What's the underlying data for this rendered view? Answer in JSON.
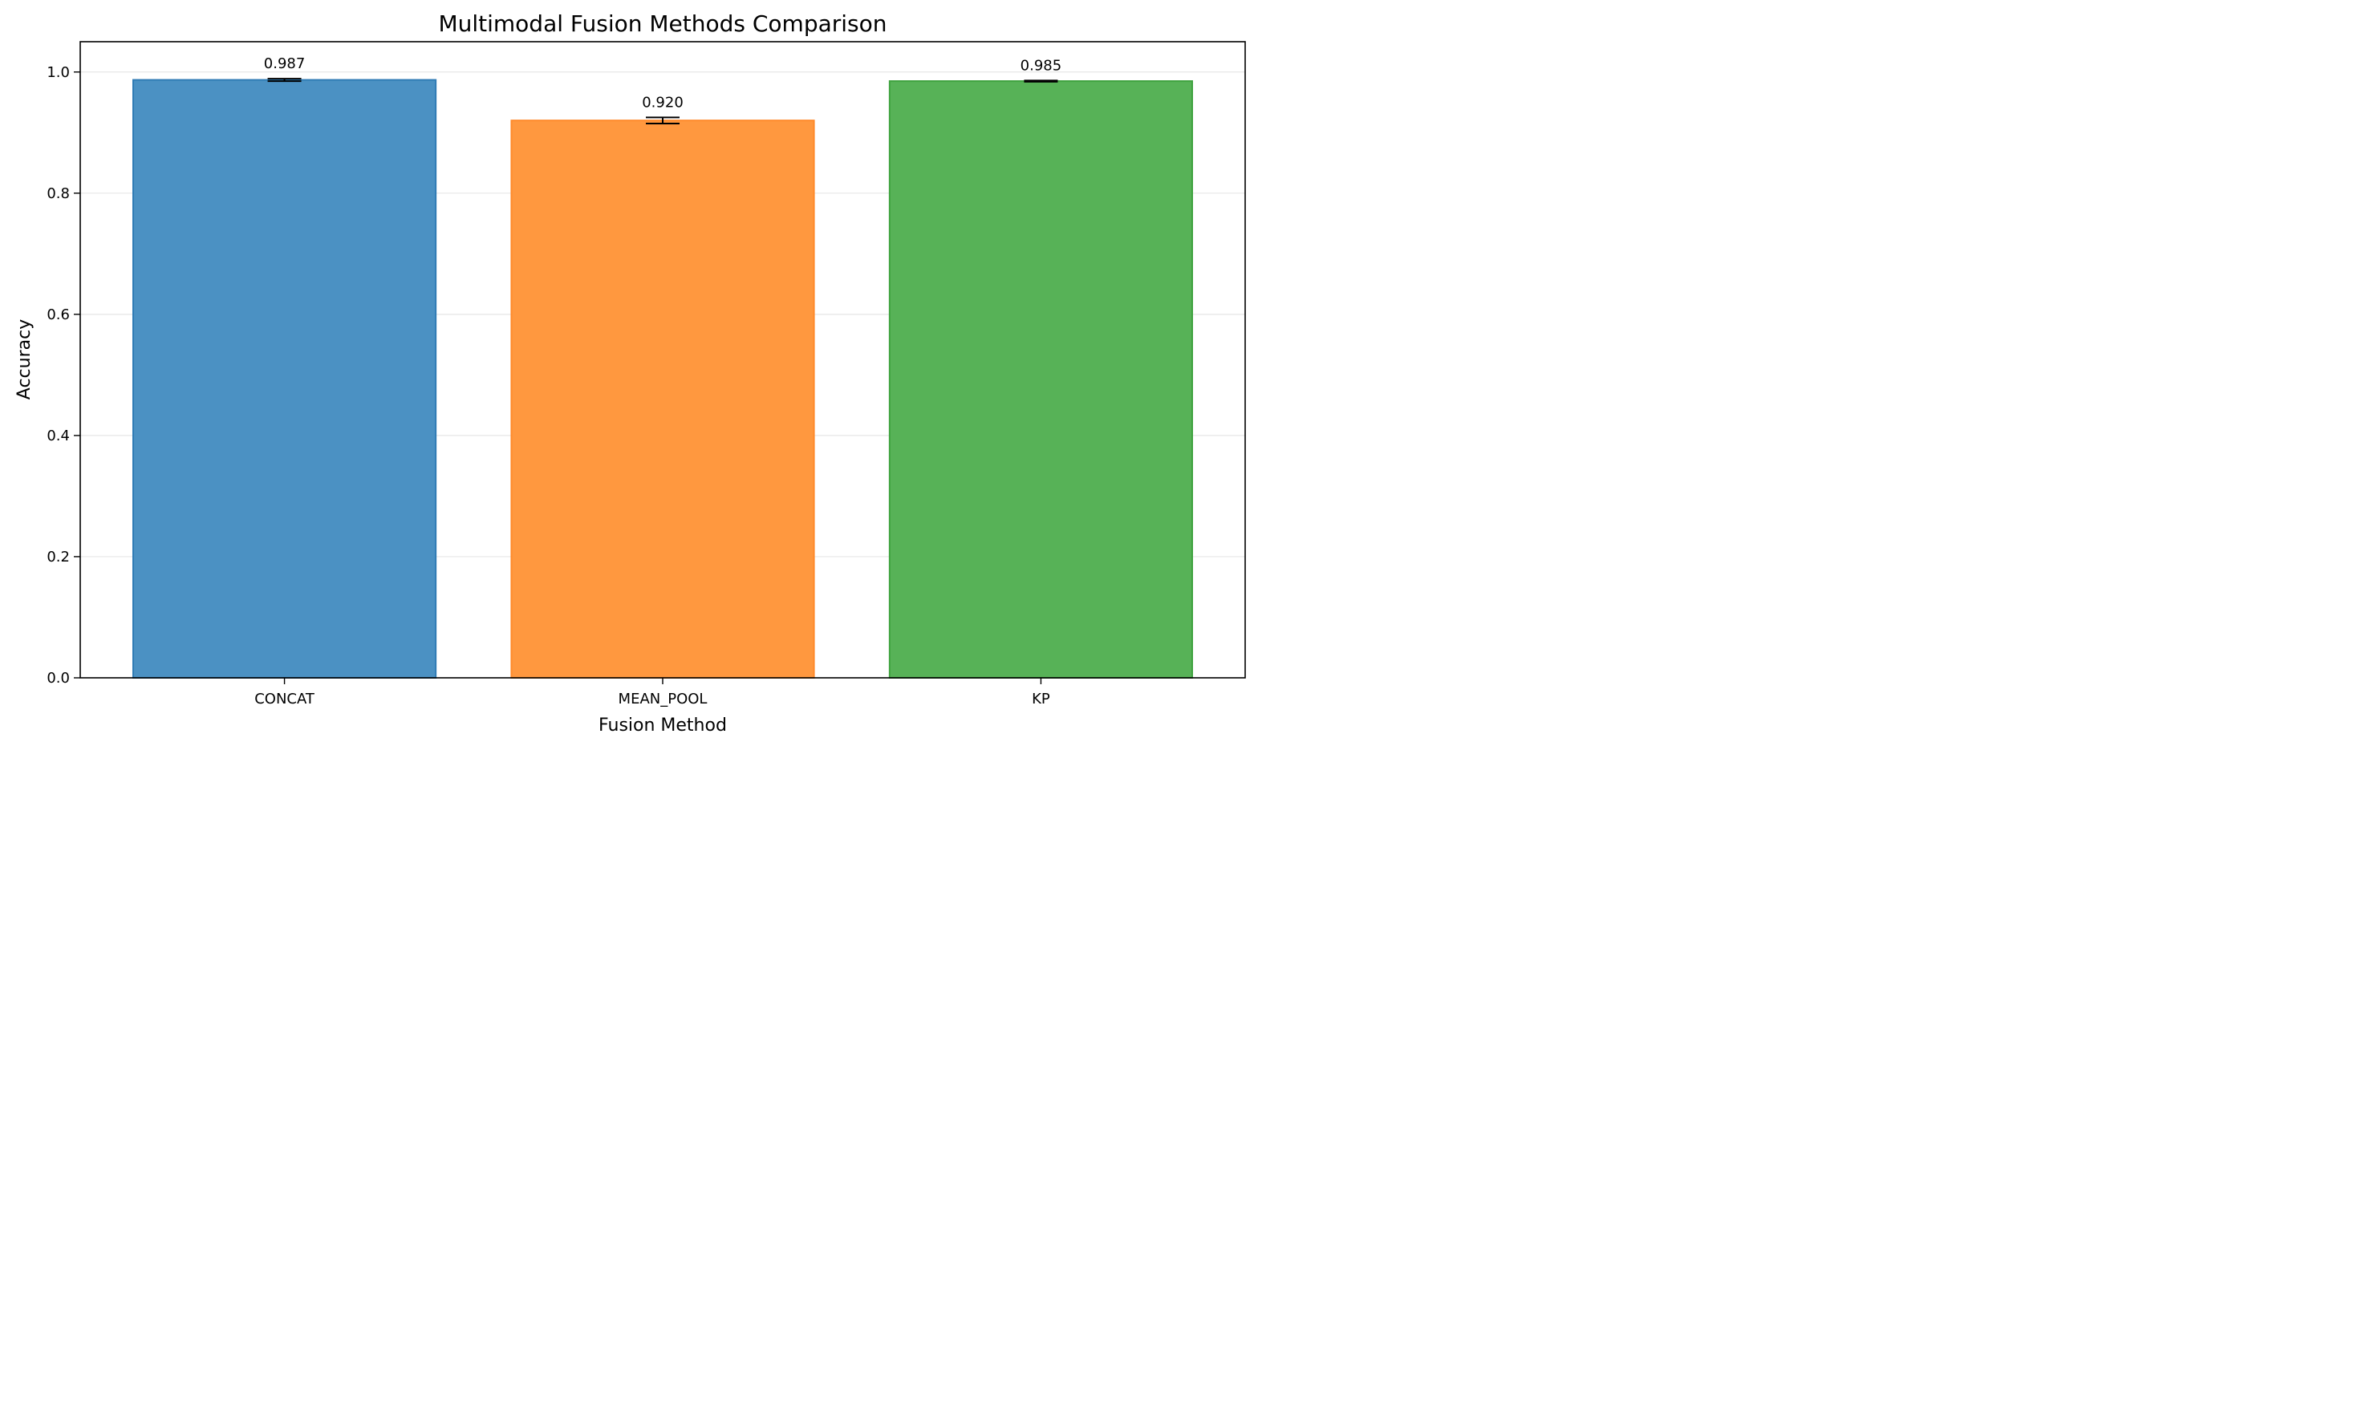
{
  "chart_data": {
    "type": "bar",
    "title": "Multimodal Fusion Methods Comparison",
    "xlabel": "Fusion Method",
    "ylabel": "Accuracy",
    "categories": [
      "CONCAT",
      "MEAN_POOL",
      "KP"
    ],
    "values": [
      0.987,
      0.92,
      0.985
    ],
    "errors": [
      0.002,
      0.005,
      0.001
    ],
    "value_labels": [
      "0.987",
      "0.920",
      "0.985"
    ],
    "colors": [
      "#4b91c3",
      "#ff983f",
      "#57b257"
    ],
    "edge_colors": [
      "#2f7bb5",
      "#ff8a2a",
      "#3fa33f"
    ],
    "ylim": [
      0,
      1.05
    ],
    "yticks": [
      0.0,
      0.2,
      0.4,
      0.6,
      0.8,
      1.0
    ],
    "ytick_labels": [
      "0.0",
      "0.2",
      "0.4",
      "0.6",
      "0.8",
      "1.0"
    ],
    "grid": true
  }
}
